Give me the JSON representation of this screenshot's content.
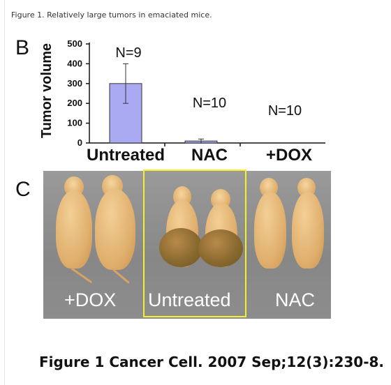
{
  "caption": "Figure 1. Relatively large tumors in emaciated mice.",
  "panel_b_letter": "B",
  "panel_c_letter": "C",
  "chart_data": {
    "type": "bar",
    "ylabel": "Tumor volume",
    "categories": [
      "Untreated",
      "NAC",
      "+DOX"
    ],
    "values": [
      300,
      10,
      0
    ],
    "error": [
      100,
      10,
      0
    ],
    "annotations": [
      "N=9",
      "N=10",
      "N=10"
    ],
    "ylim": [
      0,
      500
    ],
    "yticks": [
      0,
      100,
      200,
      300,
      400,
      500
    ],
    "bar_color": "#aaaaf2",
    "grid": false
  },
  "photo": {
    "labels": [
      "+DOX",
      "Untreated",
      "NAC"
    ],
    "highlight_color": "#f5f128"
  },
  "footer": "Figure 1 Cancer Cell. 2007 Sep;12(3):230-8."
}
